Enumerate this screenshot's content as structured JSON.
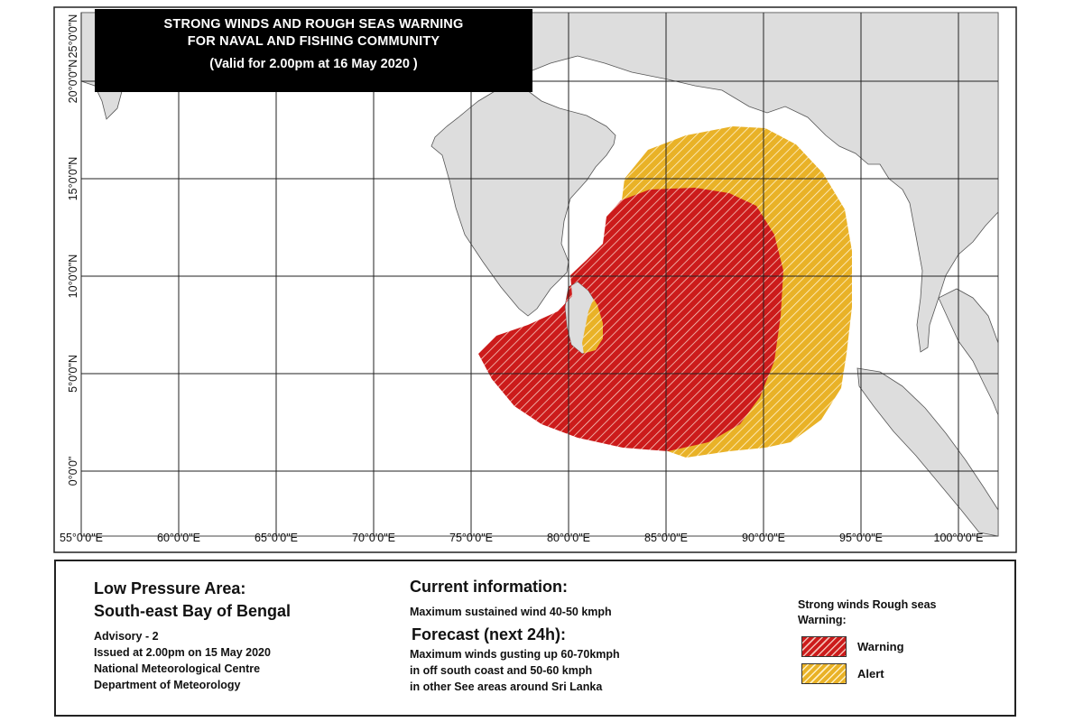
{
  "banner": {
    "line1": "STRONG WINDS AND ROUGH SEAS WARNING",
    "line2": "FOR NAVAL AND FISHING COMMUNITY",
    "line3": "(Valid for 2.00pm at 16 May 2020 )"
  },
  "map": {
    "lon_labels": [
      "55°0'0\"E",
      "60°0'0\"E",
      "65°0'0\"E",
      "70°0'0\"E",
      "75°0'0\"E",
      "80°0'0\"E",
      "85°0'0\"E",
      "90°0'0\"E",
      "95°0'0\"E",
      "100°0'0\"E"
    ],
    "lat_labels": [
      "0°0'0\"",
      "5°0'0\"N",
      "10°0'0\"N",
      "15°0'0\"N",
      "20°0'0\"N",
      "25°0'0\"N"
    ],
    "colors": {
      "land": "#dddddd",
      "sea": "#ffffff",
      "warning": "#cc1b1b",
      "alert": "#e9b227",
      "grid": "#222222"
    }
  },
  "info": {
    "title_line1": "Low Pressure Area:",
    "title_line2": "South-east Bay of Bengal",
    "advisory": "Advisory - 2",
    "issued": "Issued at 2.00pm on 15 May 2020",
    "centre": "National Meteorological Centre",
    "department": "Department of Meteorology",
    "current_heading": "Current information:",
    "current_text": "Maximum sustained wind 40-50 kmph",
    "forecast_heading": "Forecast (next 24h):",
    "forecast_line1": "Maximum winds gusting up 60-70kmph",
    "forecast_line2": "in off south coast and 50-60 kmph",
    "forecast_line3": "in other See areas around Sri Lanka",
    "legend_title_line1": "Strong winds Rough seas",
    "legend_title_line2": "Warning:",
    "legend_warning": "Warning",
    "legend_alert": "Alert"
  }
}
